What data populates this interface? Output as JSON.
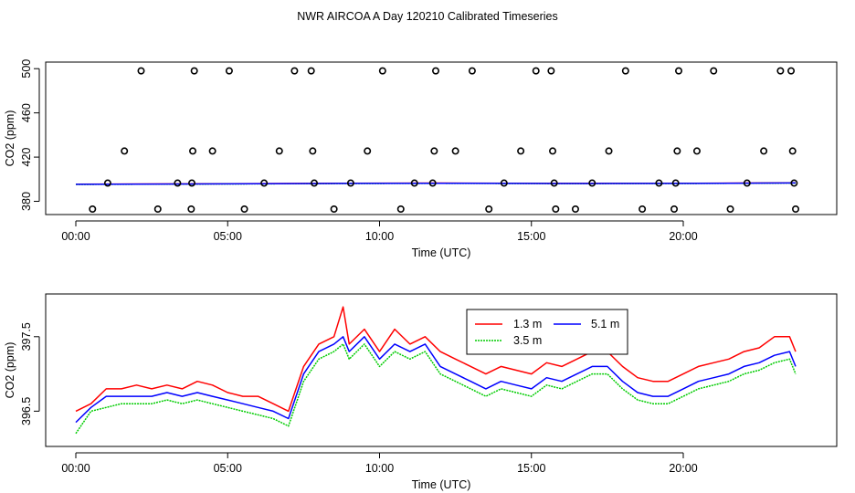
{
  "title": "NWR AIRCOA A  Day 120210  Calibrated Timeseries",
  "chart_data": [
    {
      "type": "scatter+line",
      "xlabel": "Time (UTC)",
      "ylabel": "CO2 (ppm)",
      "xlim": [
        0,
        24
      ],
      "ylim": [
        373,
        501
      ],
      "x_ticks": [
        0,
        5,
        10,
        15,
        20
      ],
      "x_tick_labels": [
        "00:00",
        "05:00",
        "10:00",
        "15:00",
        "20:00"
      ],
      "y_ticks": [
        380,
        420,
        460,
        500
      ],
      "y_tick_labels": [
        "380",
        "420",
        "460",
        "500"
      ],
      "raw_points": {
        "name": "raw samples",
        "x": [
          0.55,
          1.05,
          1.6,
          2.15,
          2.7,
          3.35,
          3.8,
          3.82,
          3.85,
          3.9,
          4.5,
          5.05,
          5.55,
          6.2,
          6.7,
          7.2,
          7.75,
          7.8,
          7.85,
          8.5,
          9.05,
          9.6,
          10.1,
          10.7,
          11.15,
          11.75,
          11.8,
          11.85,
          12.5,
          13.05,
          13.6,
          14.1,
          14.65,
          15.15,
          15.65,
          15.7,
          15.75,
          15.8,
          16.45,
          17.0,
          17.55,
          18.1,
          18.65,
          19.2,
          19.7,
          19.75,
          19.8,
          19.85,
          20.45,
          21.0,
          21.55,
          22.1,
          22.65,
          23.2,
          23.55,
          23.6,
          23.65,
          23.7
        ],
        "y": [
          373,
          396.5,
          425.5,
          498,
          373,
          396.5,
          373,
          396.5,
          425.5,
          498,
          425.5,
          498,
          373,
          396.5,
          425.5,
          498,
          498,
          425.5,
          396.5,
          373,
          396.5,
          425.5,
          498,
          373,
          396.5,
          396.5,
          425.5,
          498,
          425.5,
          498,
          373,
          396.5,
          425.5,
          498,
          498,
          425.5,
          396.5,
          373,
          373,
          396.5,
          425.5,
          498,
          373,
          396.5,
          373,
          396.5,
          425.5,
          498,
          425.5,
          498,
          373,
          396.5,
          425.5,
          498,
          498,
          425.5,
          396.5,
          373
        ]
      },
      "series": [
        {
          "name": "1.3 m",
          "color": "#ff0000",
          "x": [
            0,
            6,
            8,
            12,
            16,
            20,
            23.7
          ],
          "y": [
            395.5,
            396,
            396.2,
            396.5,
            396.2,
            396.3,
            396.8
          ]
        },
        {
          "name": "3.5 m",
          "color": "#00cc00",
          "x": [
            0,
            6,
            8,
            12,
            16,
            20,
            23.7
          ],
          "y": [
            395.3,
            395.8,
            396.0,
            396.3,
            396.0,
            396.1,
            396.5
          ]
        },
        {
          "name": "5.1 m",
          "color": "#0000ff",
          "x": [
            0,
            6,
            8,
            12,
            16,
            20,
            23.7
          ],
          "y": [
            395.4,
            395.9,
            396.1,
            396.4,
            396.1,
            396.2,
            396.6
          ]
        }
      ]
    },
    {
      "type": "line",
      "xlabel": "Time (UTC)",
      "ylabel": "CO2 (ppm)",
      "xlim": [
        0,
        24
      ],
      "ylim": [
        396.1,
        398.0
      ],
      "x_ticks": [
        0,
        5,
        10,
        15,
        20
      ],
      "x_tick_labels": [
        "00:00",
        "05:00",
        "10:00",
        "15:00",
        "20:00"
      ],
      "y_ticks": [
        396.5,
        397.5
      ],
      "y_tick_labels": [
        "396.5",
        "397.5"
      ],
      "legend": {
        "position": "top-center",
        "entries": [
          "1.3 m",
          "5.1 m",
          "3.5 m"
        ]
      },
      "series": [
        {
          "name": "1.3 m",
          "color": "#ff0000",
          "x": [
            0,
            0.5,
            1,
            1.5,
            2,
            2.5,
            3,
            3.5,
            4,
            4.5,
            5,
            5.5,
            6,
            6.5,
            7,
            7.5,
            8,
            8.5,
            8.8,
            9,
            9.5,
            10,
            10.5,
            11,
            11.5,
            12,
            12.5,
            13,
            13.5,
            14,
            14.5,
            15,
            15.5,
            16,
            16.5,
            17,
            17.5,
            18,
            18.5,
            19,
            19.5,
            20,
            20.5,
            21,
            21.5,
            22,
            22.5,
            23,
            23.5,
            23.7
          ],
          "y": [
            396.5,
            396.6,
            396.8,
            396.8,
            396.85,
            396.8,
            396.85,
            396.8,
            396.9,
            396.85,
            396.75,
            396.7,
            396.7,
            396.6,
            396.5,
            397.1,
            397.4,
            397.5,
            397.9,
            397.4,
            397.6,
            397.3,
            397.6,
            397.4,
            397.5,
            397.3,
            397.2,
            397.1,
            397.0,
            397.1,
            397.05,
            397.0,
            397.15,
            397.1,
            397.2,
            397.3,
            397.3,
            397.1,
            396.95,
            396.9,
            396.9,
            397.0,
            397.1,
            397.15,
            397.2,
            397.3,
            397.35,
            397.5,
            397.5,
            397.3
          ]
        },
        {
          "name": "3.5 m",
          "color": "#00cc00",
          "x": [
            0,
            0.5,
            1,
            1.5,
            2,
            2.5,
            3,
            3.5,
            4,
            4.5,
            5,
            5.5,
            6,
            6.5,
            7,
            7.5,
            8,
            8.5,
            8.8,
            9,
            9.5,
            10,
            10.5,
            11,
            11.5,
            12,
            12.5,
            13,
            13.5,
            14,
            14.5,
            15,
            15.5,
            16,
            16.5,
            17,
            17.5,
            18,
            18.5,
            19,
            19.5,
            20,
            20.5,
            21,
            21.5,
            22,
            22.5,
            23,
            23.5,
            23.7
          ],
          "y": [
            396.2,
            396.5,
            396.55,
            396.6,
            396.6,
            396.6,
            396.65,
            396.6,
            396.65,
            396.6,
            396.55,
            396.5,
            396.45,
            396.4,
            396.3,
            396.9,
            397.2,
            397.3,
            397.4,
            397.2,
            397.4,
            397.1,
            397.3,
            397.2,
            397.3,
            397.0,
            396.9,
            396.8,
            396.7,
            396.8,
            396.75,
            396.7,
            396.85,
            396.8,
            396.9,
            397.0,
            397.0,
            396.8,
            396.65,
            396.6,
            396.6,
            396.7,
            396.8,
            396.85,
            396.9,
            397.0,
            397.05,
            397.15,
            397.2,
            397.0
          ]
        },
        {
          "name": "5.1 m",
          "color": "#0000ff",
          "x": [
            0,
            0.5,
            1,
            1.5,
            2,
            2.5,
            3,
            3.5,
            4,
            4.5,
            5,
            5.5,
            6,
            6.5,
            7,
            7.5,
            8,
            8.5,
            8.8,
            9,
            9.5,
            10,
            10.5,
            11,
            11.5,
            12,
            12.5,
            13,
            13.5,
            14,
            14.5,
            15,
            15.5,
            16,
            16.5,
            17,
            17.5,
            18,
            18.5,
            19,
            19.5,
            20,
            20.5,
            21,
            21.5,
            22,
            22.5,
            23,
            23.5,
            23.7
          ],
          "y": [
            396.35,
            396.55,
            396.7,
            396.7,
            396.7,
            396.7,
            396.75,
            396.7,
            396.75,
            396.7,
            396.65,
            396.6,
            396.55,
            396.5,
            396.4,
            397.0,
            397.3,
            397.4,
            397.5,
            397.3,
            397.5,
            397.2,
            397.4,
            397.3,
            397.4,
            397.1,
            397.0,
            396.9,
            396.8,
            396.9,
            396.85,
            396.8,
            396.95,
            396.9,
            397.0,
            397.1,
            397.1,
            396.9,
            396.75,
            396.7,
            396.7,
            396.8,
            396.9,
            396.95,
            397.0,
            397.1,
            397.15,
            397.25,
            397.3,
            397.1
          ]
        }
      ]
    }
  ]
}
